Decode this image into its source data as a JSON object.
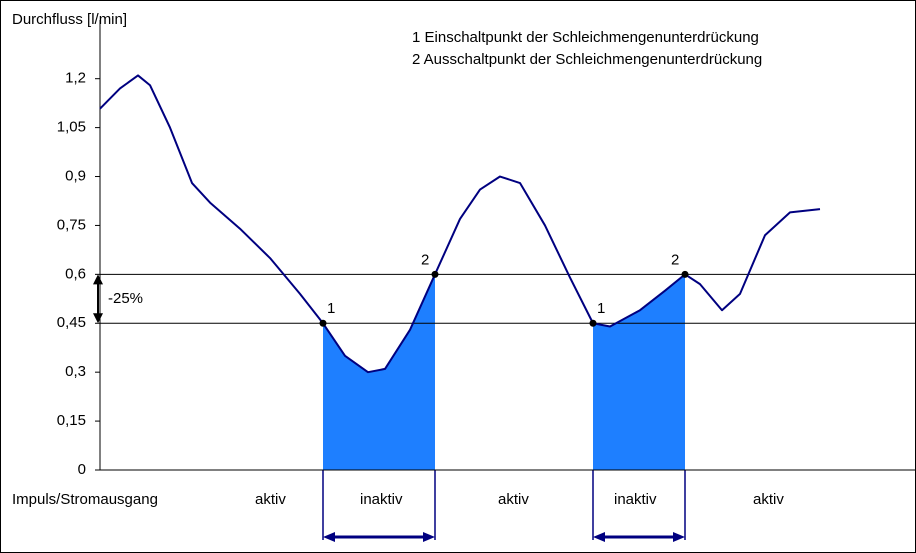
{
  "chart_data": {
    "type": "line",
    "ylabel": "Durchfluss [l/min]",
    "notes": [
      "1 Einschaltpunkt der Schleichmengenunterdrückung",
      "2 Ausschaltpunkt der Schleichmengenunterdrückung"
    ],
    "xlim": [
      0,
      816
    ],
    "ylim": [
      0,
      1.38
    ],
    "yticks": [
      0,
      {
        "value": 0.15,
        "label": "0,15"
      },
      {
        "value": 0.3,
        "label": "0,3"
      },
      {
        "value": 0.45,
        "label": "0,45"
      },
      {
        "value": 0.6,
        "label": "0,6"
      },
      {
        "value": 0.75,
        "label": "0,75"
      },
      {
        "value": 0.9,
        "label": "0,9"
      },
      {
        "value": 1.05,
        "label": "1,05"
      },
      {
        "value": 1.2,
        "label": "1,2"
      }
    ],
    "series": [
      {
        "color": "#000080",
        "x": [
          0,
          20,
          38,
          50,
          70,
          92,
          110,
          140,
          170,
          200,
          223,
          245,
          268,
          285,
          310,
          335,
          360,
          380,
          400,
          420,
          445,
          470,
          493,
          510,
          540,
          565,
          585,
          600,
          622,
          640,
          665,
          690,
          720
        ],
        "values": [
          1.108,
          1.17,
          1.21,
          1.18,
          1.05,
          0.88,
          0.82,
          0.74,
          0.65,
          0.54,
          0.45,
          0.35,
          0.3,
          0.31,
          0.43,
          0.6,
          0.77,
          0.86,
          0.9,
          0.88,
          0.75,
          0.59,
          0.45,
          0.44,
          0.49,
          0.55,
          0.6,
          0.57,
          0.49,
          0.54,
          0.72,
          0.79,
          0.8
        ]
      }
    ],
    "reference_lines": [
      0.6,
      0.45
    ],
    "reference_annotation": "-25%",
    "shaded_ranges": [
      [
        223,
        335
      ],
      [
        493,
        585
      ]
    ],
    "shade_color": "#1e7fff",
    "markers": [
      {
        "x": 223,
        "y": 0.45,
        "label": "1"
      },
      {
        "x": 335,
        "y": 0.6,
        "label": "2"
      },
      {
        "x": 493,
        "y": 0.45,
        "label": "1"
      },
      {
        "x": 585,
        "y": 0.6,
        "label": "2"
      }
    ],
    "state_row": [
      "Impuls/Stromausgang",
      "aktiv",
      "inaktiv",
      "aktiv",
      "inaktiv",
      "aktiv"
    ]
  }
}
